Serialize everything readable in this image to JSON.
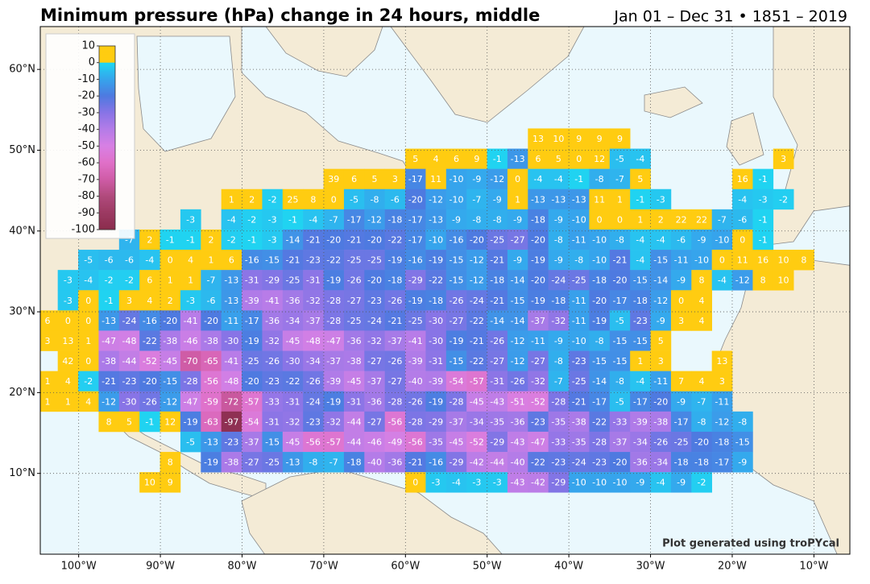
{
  "title": "Minimum pressure (hPa) change in 24 hours, middle",
  "subtitle": "Jan 01 – Dec 31 • 1851 – 2019",
  "credit": "Plot generated using troPYcal",
  "map": {
    "xlim": [
      -104.7,
      -5.6
    ],
    "ylim": [
      0,
      65.3
    ],
    "xticks": [
      {
        "value": -100,
        "label": "100°W"
      },
      {
        "value": -90,
        "label": "90°W"
      },
      {
        "value": -80,
        "label": "80°W"
      },
      {
        "value": -70,
        "label": "70°W"
      },
      {
        "value": -60,
        "label": "60°W"
      },
      {
        "value": -50,
        "label": "50°W"
      },
      {
        "value": -40,
        "label": "40°W"
      },
      {
        "value": -30,
        "label": "30°W"
      },
      {
        "value": -20,
        "label": "20°W"
      },
      {
        "value": -10,
        "label": "10°W"
      }
    ],
    "yticks": [
      {
        "value": 10,
        "label": "10°N"
      },
      {
        "value": 20,
        "label": "20°N"
      },
      {
        "value": 30,
        "label": "30°N"
      },
      {
        "value": 40,
        "label": "40°N"
      },
      {
        "value": 50,
        "label": "50°N"
      },
      {
        "value": 60,
        "label": "60°N"
      }
    ],
    "grid": true
  },
  "colorbar": {
    "lim": [
      -100,
      10
    ],
    "ticks": [
      10,
      0,
      -10,
      -20,
      -30,
      -40,
      -50,
      -60,
      -70,
      -80,
      -90,
      -100
    ],
    "colors": [
      "#ffcc11",
      "#1ed8f2",
      "#36a4ec",
      "#4e7ae0",
      "#8874e6",
      "#b47ce8",
      "#d880e4",
      "#e070c8",
      "#cf5ca6",
      "#b04a7c",
      "#9c3a62",
      "#8a2c4c"
    ]
  },
  "grid": {
    "rows": [
      [
        null,
        null,
        null,
        null,
        null,
        null,
        null,
        null,
        null,
        null,
        null,
        null,
        null,
        null,
        null,
        null,
        null,
        null,
        null,
        null,
        null,
        null,
        null,
        null,
        13,
        10,
        9,
        9,
        9,
        null,
        null,
        null,
        null,
        null,
        null,
        null,
        null,
        null,
        null,
        null
      ],
      [
        null,
        null,
        null,
        null,
        null,
        null,
        null,
        null,
        null,
        null,
        null,
        null,
        null,
        null,
        null,
        null,
        null,
        null,
        5,
        4,
        6,
        9,
        -1,
        -13,
        6,
        5,
        0,
        12,
        -5,
        -4,
        null,
        null,
        null,
        null,
        null,
        null,
        3,
        null,
        null,
        null
      ],
      [
        null,
        null,
        null,
        null,
        null,
        null,
        null,
        null,
        null,
        null,
        null,
        null,
        null,
        null,
        39,
        6,
        5,
        3,
        -17,
        11,
        -10,
        -9,
        -12,
        0,
        -4,
        -4,
        -1,
        -8,
        -7,
        5,
        null,
        null,
        null,
        null,
        16,
        -1,
        null,
        null,
        null,
        null
      ],
      [
        null,
        null,
        null,
        null,
        null,
        null,
        null,
        null,
        null,
        1,
        2,
        -2,
        25,
        8,
        0,
        -5,
        -8,
        -6,
        -20,
        -12,
        -10,
        -7,
        -9,
        1,
        -13,
        -13,
        -13,
        11,
        1,
        -1,
        -3,
        null,
        null,
        null,
        -4,
        -3,
        -2,
        null,
        null,
        null
      ],
      [
        null,
        null,
        null,
        null,
        null,
        null,
        null,
        -3,
        null,
        -4,
        -2,
        -3,
        -1,
        -4,
        -7,
        -17,
        -12,
        -18,
        -17,
        -13,
        -9,
        -8,
        -8,
        -9,
        -18,
        -9,
        -10,
        0,
        0,
        1,
        2,
        22,
        22,
        -7,
        -6,
        -1,
        null,
        null,
        null,
        null
      ],
      [
        null,
        null,
        null,
        null,
        -7,
        2,
        -1,
        -1,
        2,
        -2,
        -1,
        -3,
        -14,
        -21,
        -20,
        -21,
        -20,
        -22,
        -17,
        -10,
        -16,
        -20,
        -25,
        -27,
        -20,
        -8,
        -11,
        -10,
        -8,
        -4,
        -4,
        -6,
        -9,
        -10,
        0,
        -1,
        null,
        null,
        null,
        null
      ],
      [
        null,
        null,
        -5,
        -6,
        -6,
        -4,
        0,
        4,
        1,
        6,
        -16,
        -15,
        -21,
        -23,
        -22,
        -25,
        -25,
        -19,
        -16,
        -19,
        -15,
        -12,
        -21,
        -9,
        -19,
        -9,
        -8,
        -10,
        -21,
        -4,
        -15,
        -11,
        -10,
        0,
        11,
        16,
        10,
        8,
        null,
        null
      ],
      [
        null,
        -3,
        -4,
        -2,
        -2,
        6,
        1,
        1,
        -7,
        -13,
        -31,
        -29,
        -25,
        -31,
        -19,
        -26,
        -20,
        -18,
        -29,
        -22,
        -15,
        -12,
        -18,
        -14,
        -20,
        -24,
        -25,
        -18,
        -20,
        -15,
        -14,
        -9,
        8,
        -4,
        -12,
        8,
        10,
        null,
        null,
        null
      ],
      [
        null,
        -3,
        0,
        -1,
        3,
        4,
        2,
        -3,
        -6,
        -13,
        -39,
        -41,
        -36,
        -32,
        -28,
        -27,
        -23,
        -26,
        -19,
        -18,
        -26,
        -24,
        -21,
        -15,
        -19,
        -18,
        -11,
        -20,
        -17,
        -18,
        -12,
        0,
        4,
        null,
        null,
        null,
        null,
        null,
        null,
        null
      ],
      [
        6,
        0,
        0,
        -13,
        -24,
        -16,
        -20,
        -41,
        -20,
        -11,
        -17,
        -36,
        -34,
        -37,
        -28,
        -25,
        -24,
        -21,
        -25,
        -30,
        -27,
        -22,
        -14,
        -14,
        -37,
        -32,
        -11,
        -19,
        -5,
        -23,
        -9,
        3,
        4,
        null,
        null,
        null,
        null,
        null,
        null,
        null
      ],
      [
        3,
        13,
        1,
        -47,
        -48,
        -22,
        -38,
        -46,
        -38,
        -30,
        -19,
        -32,
        -45,
        -48,
        -47,
        -36,
        -32,
        -37,
        -41,
        -30,
        -19,
        -21,
        -26,
        -12,
        -11,
        -9,
        -10,
        -8,
        -15,
        -15,
        5,
        null,
        null,
        null,
        null,
        null,
        null,
        null,
        null,
        null
      ],
      [
        null,
        42,
        0,
        -38,
        -44,
        -52,
        -45,
        -70,
        -65,
        -41,
        -25,
        -26,
        -30,
        -34,
        -37,
        -38,
        -27,
        -26,
        -39,
        -31,
        -15,
        -22,
        -27,
        -12,
        -27,
        -8,
        -23,
        -15,
        -15,
        1,
        3,
        null,
        null,
        13,
        null,
        null,
        null,
        null,
        null,
        null
      ],
      [
        1,
        4,
        -2,
        -21,
        -23,
        -20,
        -15,
        -28,
        -56,
        -48,
        -20,
        -23,
        -22,
        -26,
        -39,
        -45,
        -37,
        -27,
        -40,
        -39,
        -54,
        -57,
        -31,
        -26,
        -32,
        -7,
        -25,
        -14,
        -8,
        -4,
        -11,
        7,
        4,
        3,
        null,
        null,
        null,
        null,
        null,
        null
      ],
      [
        1,
        1,
        4,
        -12,
        -30,
        -26,
        -12,
        -47,
        -59,
        -72,
        -57,
        -33,
        -31,
        -24,
        -19,
        -31,
        -36,
        -28,
        -26,
        -19,
        -28,
        -45,
        -43,
        -51,
        -52,
        -28,
        -21,
        -17,
        -5,
        -17,
        -20,
        -9,
        -7,
        -11,
        null,
        null,
        null,
        null,
        null,
        null
      ],
      [
        null,
        null,
        null,
        8,
        5,
        -1,
        12,
        -19,
        -63,
        -97,
        -54,
        -31,
        -32,
        -23,
        -32,
        -44,
        -27,
        -56,
        -28,
        -29,
        -37,
        -34,
        -35,
        -36,
        -23,
        -35,
        -38,
        -22,
        -33,
        -39,
        -38,
        -17,
        -8,
        -12,
        -8,
        null,
        null,
        null,
        null,
        null
      ],
      [
        null,
        null,
        null,
        null,
        null,
        null,
        null,
        -5,
        -13,
        -23,
        -37,
        -15,
        -45,
        -56,
        -57,
        -44,
        -46,
        -49,
        -56,
        -35,
        -45,
        -52,
        -29,
        -43,
        -47,
        -33,
        -35,
        -28,
        -37,
        -34,
        -26,
        -25,
        -20,
        -18,
        -15,
        null,
        null,
        null,
        null,
        null
      ],
      [
        null,
        null,
        null,
        null,
        null,
        null,
        8,
        null,
        -19,
        -38,
        -27,
        -25,
        -13,
        -8,
        -7,
        -18,
        -40,
        -36,
        -21,
        -16,
        -29,
        -42,
        -44,
        -40,
        -22,
        -23,
        -24,
        -23,
        -20,
        -36,
        -34,
        -18,
        -18,
        -17,
        -9,
        null,
        null,
        null,
        null,
        null
      ],
      [
        null,
        null,
        null,
        null,
        null,
        10,
        9,
        null,
        null,
        null,
        null,
        null,
        null,
        null,
        null,
        null,
        null,
        null,
        0,
        -3,
        -4,
        -3,
        -3,
        -43,
        -42,
        -29,
        -10,
        -10,
        -10,
        -9,
        -4,
        -9,
        -2,
        null,
        null,
        null,
        null,
        null,
        null,
        null
      ]
    ]
  }
}
